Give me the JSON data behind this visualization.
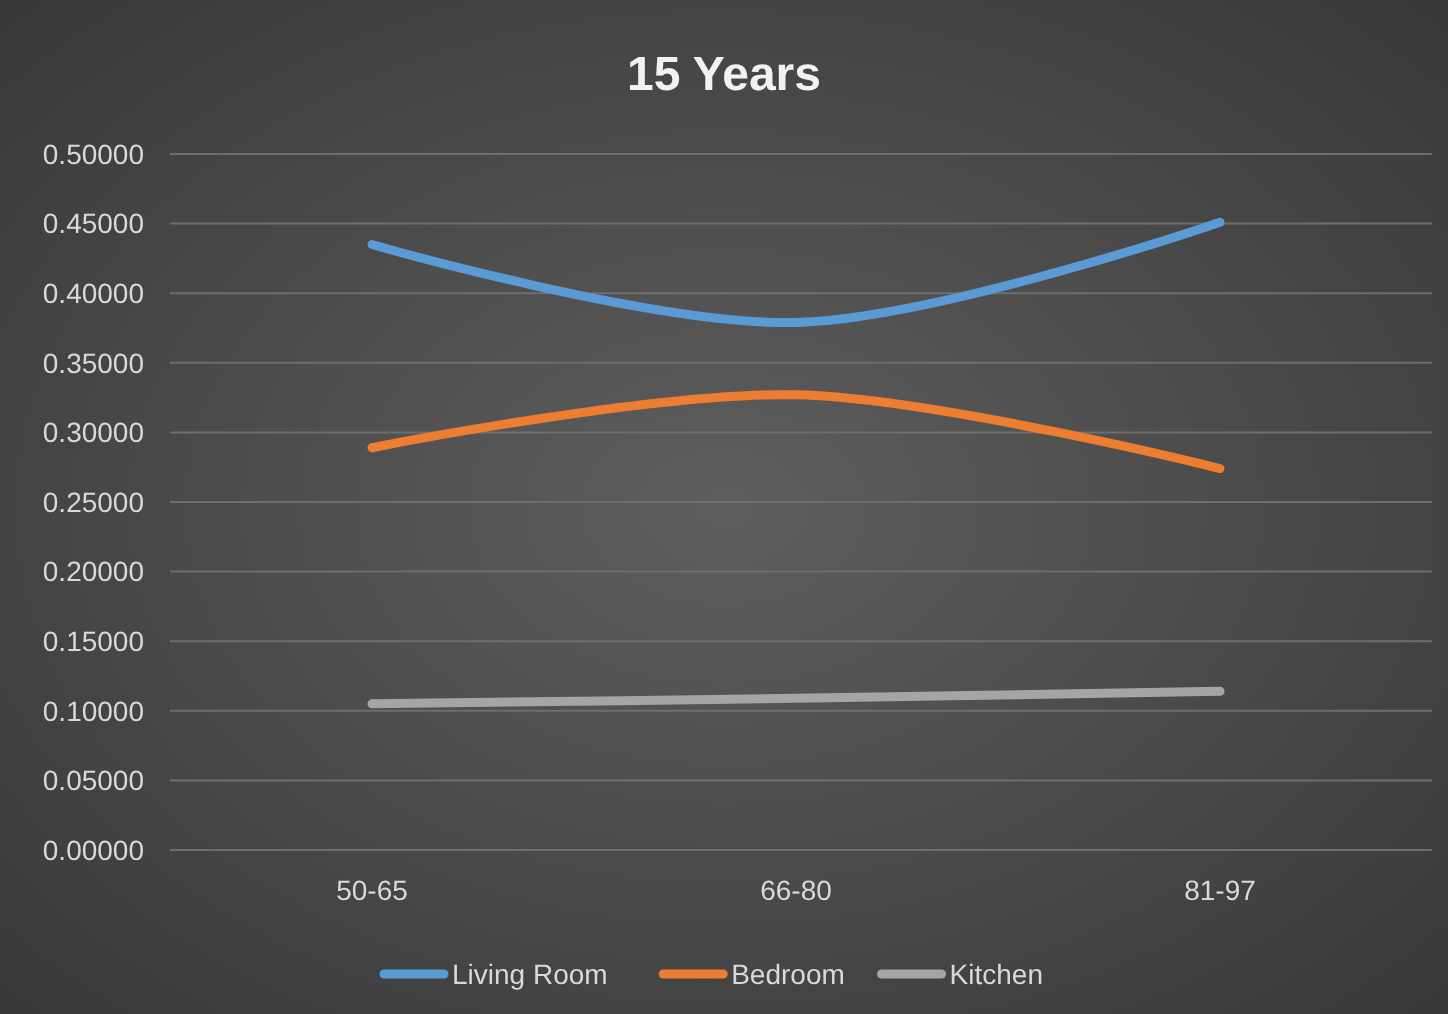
{
  "chart_data": {
    "type": "line",
    "title": "15 Years",
    "categories": [
      "50-65",
      "66-80",
      "81-97"
    ],
    "series": [
      {
        "name": "Living Room",
        "color": "#5b9bd5",
        "values": [
          0.435,
          0.379,
          0.451
        ]
      },
      {
        "name": "Bedroom",
        "color": "#ed7d31",
        "values": [
          0.289,
          0.327,
          0.274
        ]
      },
      {
        "name": "Kitchen",
        "color": "#a5a5a5",
        "values": [
          0.105,
          0.109,
          0.114
        ]
      }
    ],
    "ylim": [
      0,
      0.5
    ],
    "yticks": [
      {
        "value": 0,
        "label": "0.00000"
      },
      {
        "value": 0.05,
        "label": "0.05000"
      },
      {
        "value": 0.1,
        "label": "0.10000"
      },
      {
        "value": 0.15,
        "label": "0.15000"
      },
      {
        "value": 0.2,
        "label": "0.20000"
      },
      {
        "value": 0.25,
        "label": "0.25000"
      },
      {
        "value": 0.3,
        "label": "0.30000"
      },
      {
        "value": 0.35,
        "label": "0.35000"
      },
      {
        "value": 0.4,
        "label": "0.40000"
      },
      {
        "value": 0.45,
        "label": "0.45000"
      },
      {
        "value": 0.5,
        "label": "0.50000"
      }
    ],
    "grid": "y",
    "legend": "bottom",
    "marker": "none",
    "line_style": "solid"
  }
}
